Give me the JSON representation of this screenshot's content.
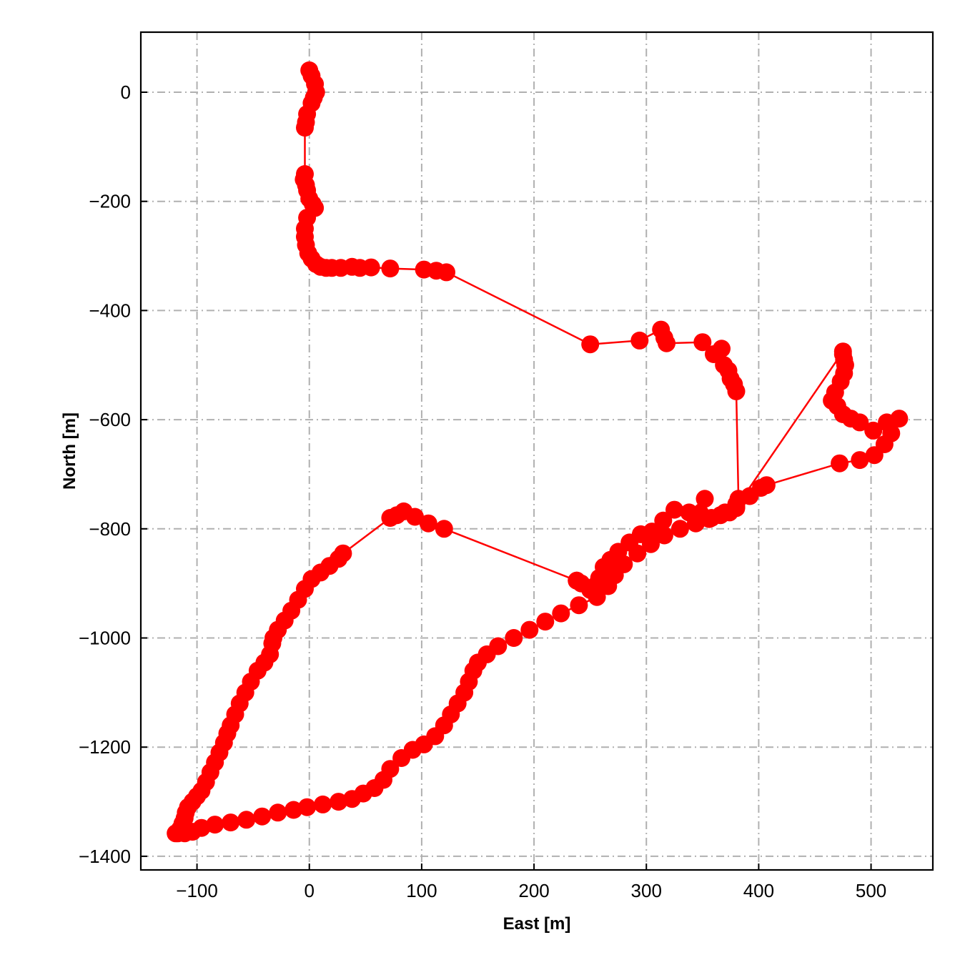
{
  "chart_data": {
    "type": "line",
    "title": "",
    "xlabel": "East [m]",
    "ylabel": "North [m]",
    "xlim": [
      -150,
      555
    ],
    "ylim": [
      -1425,
      110
    ],
    "xticks": [
      -100,
      0,
      100,
      200,
      300,
      400,
      500
    ],
    "yticks": [
      0,
      -200,
      -400,
      -600,
      -800,
      -1000,
      -1200,
      -1400
    ],
    "xtick_labels": [
      "−100",
      "0",
      "100",
      "200",
      "300",
      "400",
      "500"
    ],
    "ytick_labels": [
      "0",
      "−200",
      "−400",
      "−600",
      "−800",
      "−1000",
      "−1200",
      "−1400"
    ],
    "grid": true,
    "grid_style": "dash-dot",
    "marker": "circle",
    "colors": {
      "series": "#ff0000",
      "grid": "#b0b0b0",
      "axes": "#000000"
    },
    "series": [
      {
        "x": [
          0,
          2,
          5,
          6,
          4,
          2,
          -2,
          -3,
          -4,
          -4,
          -5,
          -3,
          -2,
          0,
          3,
          5,
          -2,
          -4,
          -4,
          -3,
          -1,
          2,
          6,
          10,
          15,
          20,
          28,
          38,
          45,
          55,
          72,
          102,
          113,
          122,
          250,
          294,
          313,
          316,
          318,
          350,
          360,
          367,
          369,
          373,
          375,
          378,
          380,
          382,
          380,
          392,
          402,
          407,
          472,
          490,
          503,
          512,
          518,
          525,
          514,
          502,
          490,
          482,
          475,
          470,
          465,
          468,
          473,
          476,
          477,
          476,
          475,
          475
        ],
        "y": [
          40,
          30,
          15,
          0,
          -10,
          -20,
          -40,
          -55,
          -65,
          -150,
          -160,
          -170,
          -180,
          -195,
          -205,
          -212,
          -230,
          -250,
          -265,
          -280,
          -295,
          -305,
          -315,
          -320,
          -322,
          -322,
          -322,
          -320,
          -322,
          -321,
          -323,
          -325,
          -327,
          -330,
          -462,
          -455,
          -435,
          -450,
          -460,
          -458,
          -480,
          -470,
          -500,
          -510,
          -525,
          -535,
          -548,
          -745,
          -755,
          -740,
          -725,
          -720,
          -680,
          -674,
          -665,
          -645,
          -625,
          -598,
          -605,
          -620,
          -605,
          -598,
          -590,
          -575,
          -565,
          -550,
          -530,
          -515,
          -500,
          -490,
          -480,
          -475
        ]
      },
      {
        "x": [
          380,
          370,
          358,
          348,
          352,
          338,
          325,
          315,
          305,
          295,
          285,
          275,
          268,
          262,
          258,
          254,
          250,
          242,
          238
        ],
        "y": [
          -760,
          -770,
          -780,
          -772,
          -745,
          -770,
          -765,
          -785,
          -805,
          -810,
          -825,
          -842,
          -857,
          -870,
          -890,
          -905,
          -912,
          -900,
          -895
        ],
        "note": ""
      },
      {
        "x": [
          238,
          120,
          106,
          94,
          84,
          78,
          72,
          30,
          26,
          18,
          10,
          2,
          -4,
          -10,
          -16,
          -22,
          -28,
          -32,
          -33,
          -35,
          -40,
          -46,
          -52,
          -57,
          -62,
          -66,
          -70,
          -73,
          -76,
          -80,
          -84,
          -88,
          -92,
          -96,
          -100,
          -104,
          -108,
          -110,
          -111,
          -113,
          -115,
          -117,
          -119,
          -111,
          -104,
          -96,
          -84,
          -70,
          -56,
          -42,
          -28,
          -14,
          -2,
          12,
          26,
          38,
          48,
          58,
          66,
          72,
          82,
          92,
          102,
          112,
          120,
          126,
          132,
          138,
          142,
          146,
          150,
          158,
          168,
          182,
          196,
          210,
          224,
          240,
          256,
          266,
          272,
          280,
          292,
          304,
          316,
          330,
          344,
          356,
          366,
          374,
          380
        ],
        "y": [
          -895,
          -800,
          -790,
          -778,
          -768,
          -775,
          -780,
          -845,
          -855,
          -868,
          -880,
          -892,
          -910,
          -930,
          -950,
          -968,
          -985,
          -1000,
          -1010,
          -1030,
          -1045,
          -1060,
          -1080,
          -1100,
          -1120,
          -1140,
          -1160,
          -1175,
          -1192,
          -1210,
          -1228,
          -1246,
          -1264,
          -1280,
          -1290,
          -1300,
          -1310,
          -1320,
          -1330,
          -1340,
          -1350,
          -1358,
          -1358,
          -1358,
          -1355,
          -1348,
          -1342,
          -1338,
          -1333,
          -1327,
          -1320,
          -1315,
          -1310,
          -1305,
          -1300,
          -1295,
          -1285,
          -1275,
          -1260,
          -1240,
          -1220,
          -1205,
          -1195,
          -1180,
          -1160,
          -1140,
          -1120,
          -1100,
          -1080,
          -1060,
          -1045,
          -1030,
          -1015,
          -1000,
          -985,
          -970,
          -955,
          -940,
          -925,
          -905,
          -885,
          -865,
          -845,
          -828,
          -812,
          -800,
          -790,
          -782,
          -775,
          -770,
          -762
        ]
      }
    ]
  }
}
